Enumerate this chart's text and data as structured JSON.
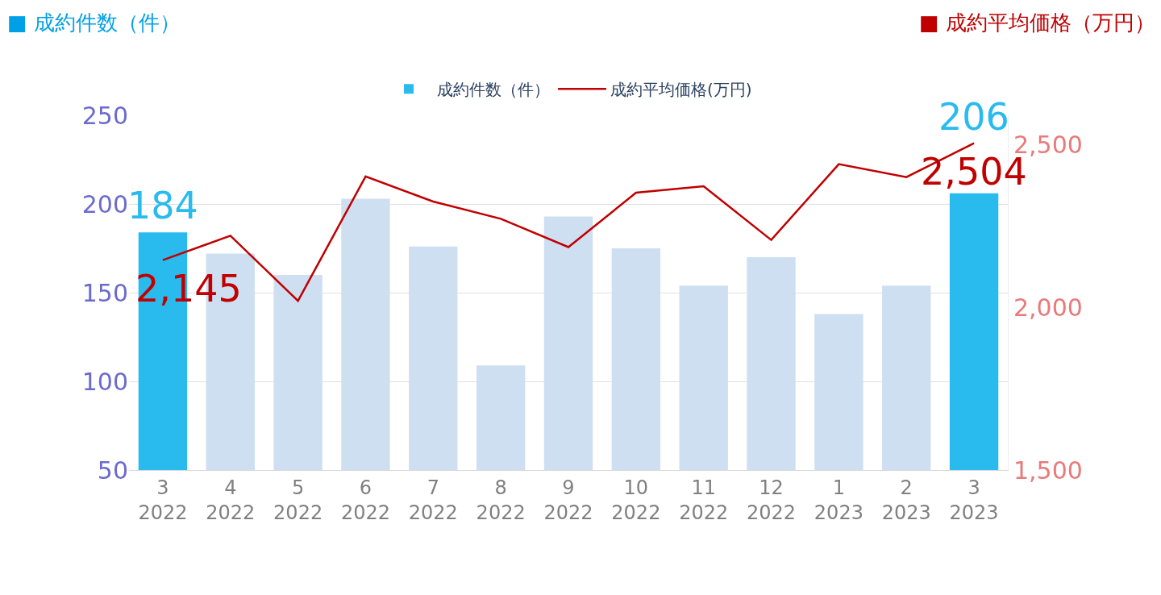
{
  "chart_data": {
    "type": "bar",
    "categories": [
      "3\n2022",
      "4\n2022",
      "5\n2022",
      "6\n2022",
      "7\n2022",
      "8\n2022",
      "9\n2022",
      "10\n2022",
      "11\n2022",
      "12\n2022",
      "1\n2023",
      "2\n2023",
      "3\n2023"
    ],
    "series": [
      {
        "name": "成約件数（件）",
        "color": "#cfdff2",
        "colors": [
          "#29bbee",
          "#cfdff2",
          "#cfdff2",
          "#cfdff2",
          "#cfdff2",
          "#cfdff2",
          "#cfdff2",
          "#cfdff2",
          "#cfdff2",
          "#cfdff2",
          "#cfdff2",
          "#cfdff2",
          "#29bbee"
        ],
        "values": [
          184,
          172,
          160,
          203,
          176,
          109,
          193,
          175,
          154,
          170,
          138,
          154,
          206
        ],
        "value_labels": [
          "184",
          null,
          null,
          null,
          null,
          null,
          null,
          null,
          null,
          null,
          null,
          null,
          "206"
        ]
      },
      {
        "name": "成約平均価格(万円)",
        "type": "line",
        "axis": "y2",
        "color": "#c00000",
        "values": [
          2145,
          2220,
          2020,
          2402,
          2325,
          2272,
          2185,
          2352,
          2372,
          2207,
          2440,
          2400,
          2504
        ],
        "value_labels": [
          "2,145",
          null,
          null,
          null,
          null,
          null,
          null,
          null,
          null,
          null,
          null,
          null,
          "2,504"
        ]
      }
    ],
    "ylim": [
      50,
      250
    ],
    "yticks": [
      50,
      100,
      150,
      200,
      250
    ],
    "y2lim": [
      1500,
      2590
    ],
    "y2ticks": [
      {
        "value": 1500,
        "label": "1,500"
      },
      {
        "value": 2000,
        "label": "2,000"
      },
      {
        "value": 2500,
        "label": "2,500"
      }
    ],
    "grid": "y",
    "legend": "top",
    "marker": "none",
    "line_style": "solid",
    "annotations": [
      "■ 成約件数（件）",
      "■ 成約平均価格（万円）"
    ]
  }
}
